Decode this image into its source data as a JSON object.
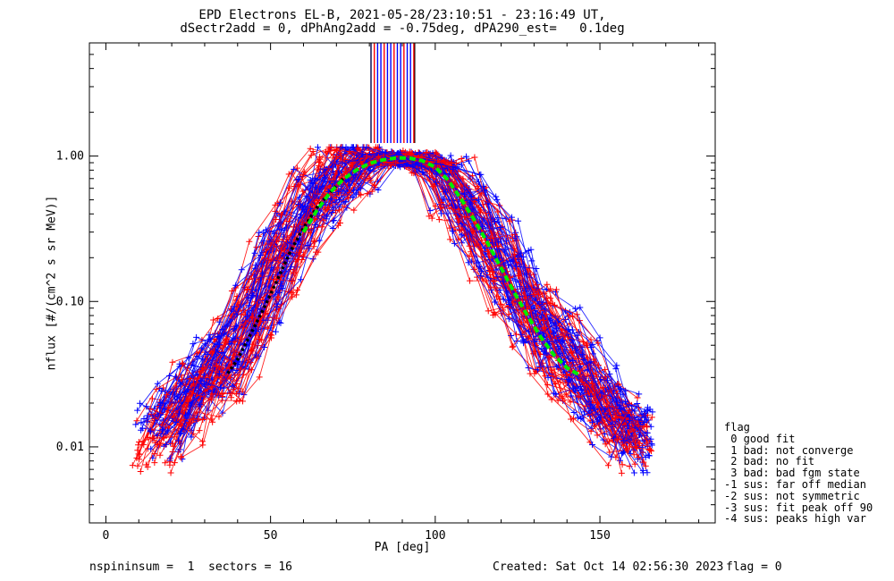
{
  "header": {
    "title_line1": "EPD Electrons EL-B, 2021-05-28/23:10:51 - 23:16:49 UT,",
    "title_line2": "dSectr2add = 0, dPhAng2add = -0.75deg, dPA290_est=   0.1deg"
  },
  "footer": {
    "left": "nspininsum =  1  sectors = 16",
    "created": "Created: Sat Oct 14 02:56:30 2023",
    "flag": "flag = 0"
  },
  "legend": {
    "title": "flag",
    "items": [
      " 0 good fit",
      " 1 bad: not converge",
      " 2 bad: no fit",
      " 3 bad: bad fgm state",
      "-1 sus: far off median",
      "-2 sus: not symmetric",
      "-3 sus: fit peak off 90",
      "-4 sus: peaks high var"
    ]
  },
  "colors": {
    "series_red": "#ff0000",
    "series_blue": "#0000ff",
    "median_fit": "#000000",
    "fit_curve": "#00ee00",
    "axes": "#000000"
  },
  "chart_data": {
    "type": "scatter",
    "xlabel": "PA [deg]",
    "ylabel": "nflux [#/(cm^2 s sr MeV)]",
    "xlim": [
      -5,
      185
    ],
    "ylim": [
      0.003,
      6.0
    ],
    "yscale": "log",
    "x_ticks": [
      0,
      50,
      100,
      150
    ],
    "x_tick_labels": [
      "0",
      "50",
      "100",
      "150"
    ],
    "y_ticks": [
      0.01,
      0.1,
      1.0
    ],
    "y_tick_labels": [
      "0.01",
      "0.10",
      "1.00"
    ],
    "grid": false,
    "legend_position": "outside-right-bottom",
    "series": [
      {
        "color": "red",
        "x": [
          16,
          22,
          28,
          34,
          40,
          46,
          52,
          58,
          64,
          70,
          76,
          82,
          88,
          94,
          100,
          106,
          112,
          118,
          124,
          130,
          136,
          142,
          148,
          154,
          160,
          164
        ],
        "y": [
          0.011,
          0.017,
          0.024,
          0.034,
          0.05,
          0.09,
          0.17,
          0.3,
          0.5,
          0.7,
          0.85,
          0.95,
          0.97,
          0.95,
          0.85,
          0.6,
          0.38,
          0.22,
          0.13,
          0.08,
          0.05,
          0.033,
          0.022,
          0.016,
          0.012,
          0.01
        ]
      },
      {
        "color": "blue",
        "x": [
          16,
          22,
          28,
          34,
          40,
          46,
          52,
          58,
          64,
          70,
          76,
          82,
          88,
          94,
          100,
          106,
          112,
          118,
          124,
          130,
          136,
          142,
          148,
          154,
          160,
          164
        ],
        "y": [
          0.013,
          0.019,
          0.026,
          0.036,
          0.055,
          0.1,
          0.19,
          0.32,
          0.52,
          0.72,
          0.86,
          0.94,
          0.96,
          0.94,
          0.84,
          0.62,
          0.4,
          0.24,
          0.14,
          0.085,
          0.055,
          0.036,
          0.024,
          0.017,
          0.013,
          0.011
        ]
      },
      {
        "name": "median",
        "color": "black",
        "style": "dotted",
        "x": [
          37,
          40,
          44,
          48,
          52,
          56,
          60,
          64,
          68,
          72
        ],
        "y": [
          0.032,
          0.04,
          0.06,
          0.09,
          0.14,
          0.22,
          0.32,
          0.44,
          0.56,
          0.7
        ]
      },
      {
        "name": "fit",
        "color": "green",
        "style": "dashed",
        "x": [
          60,
          64,
          68,
          72,
          76,
          80,
          84,
          88,
          92,
          96,
          100,
          104,
          108,
          112,
          116,
          120,
          124,
          128,
          132,
          136,
          140,
          144
        ],
        "y": [
          0.3,
          0.42,
          0.56,
          0.69,
          0.8,
          0.89,
          0.94,
          0.97,
          0.97,
          0.93,
          0.84,
          0.68,
          0.5,
          0.36,
          0.25,
          0.17,
          0.115,
          0.08,
          0.057,
          0.043,
          0.035,
          0.031
        ]
      }
    ],
    "peak_markers_x": [
      80.5,
      81.5,
      82.5,
      83.5,
      84.5,
      85.5,
      86.5,
      87.5,
      88.5,
      89.5,
      90.5,
      91.5,
      92.5,
      93.5
    ]
  }
}
